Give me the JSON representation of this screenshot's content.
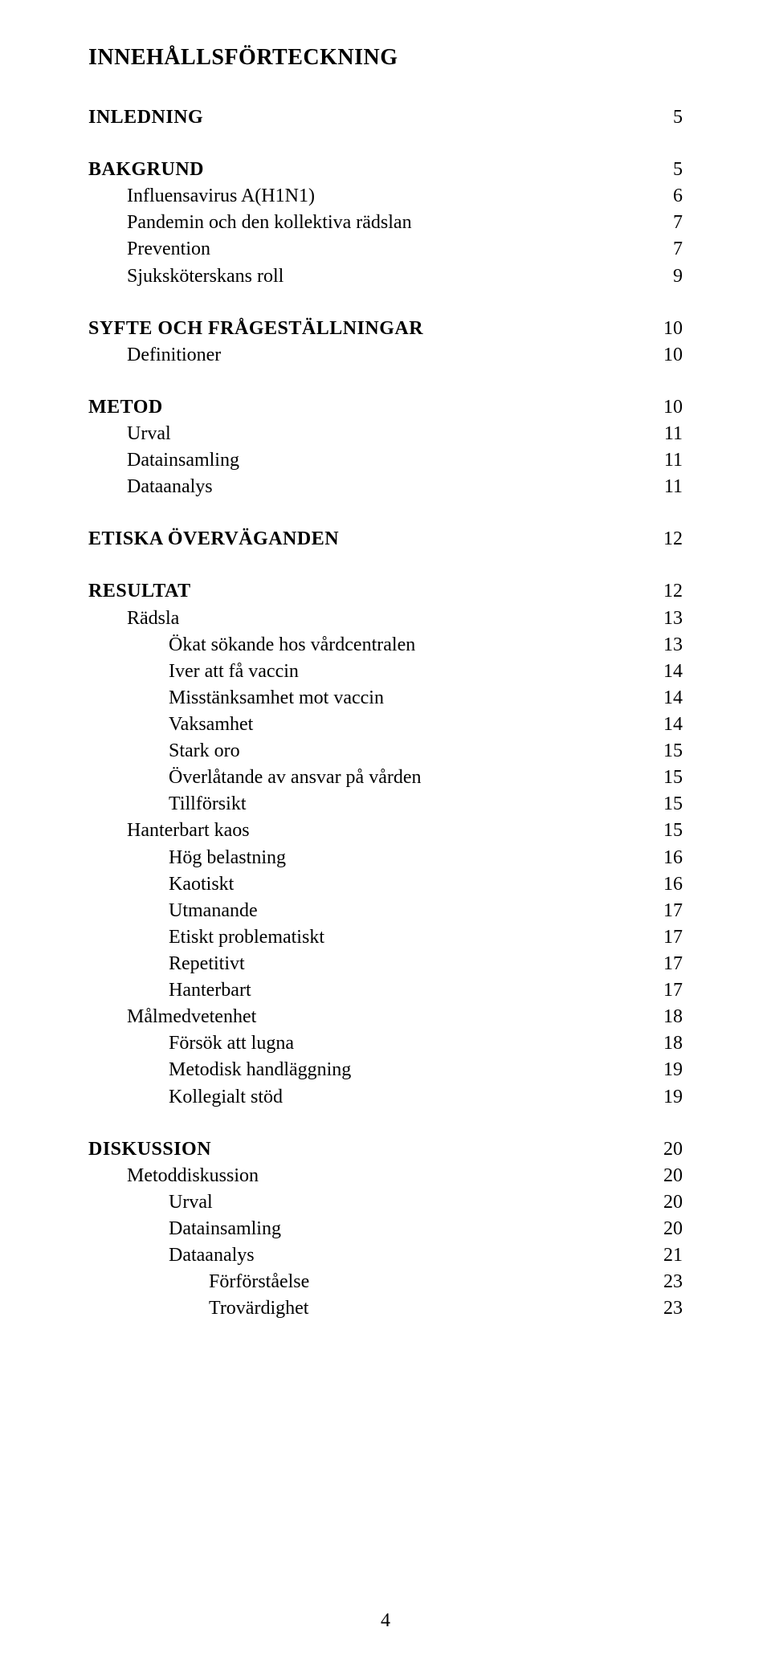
{
  "title": "INNEHÅLLSFÖRTECKNING",
  "page_footer": "4",
  "colors": {
    "text": "#000000",
    "background": "#ffffff"
  },
  "typography": {
    "family": "Times New Roman",
    "title_size_pt": 21,
    "body_size_pt": 18
  },
  "entries": [
    {
      "label": "INLEDNING",
      "page": "5",
      "level": 0,
      "bold": true,
      "gap_before": false
    },
    {
      "label": "BAKGRUND",
      "page": "5",
      "level": 0,
      "bold": true,
      "gap_before": true
    },
    {
      "label": "Influensavirus A(H1N1)",
      "page": "6",
      "level": 1,
      "bold": false
    },
    {
      "label": "Pandemin och den kollektiva rädslan",
      "page": "7",
      "level": 1,
      "bold": false
    },
    {
      "label": "Prevention",
      "page": "7",
      "level": 1,
      "bold": false
    },
    {
      "label": "Sjuksköterskans roll",
      "page": "9",
      "level": 1,
      "bold": false
    },
    {
      "label": "SYFTE OCH FRÅGESTÄLLNINGAR",
      "page": "10",
      "level": 0,
      "bold": true,
      "gap_before": true
    },
    {
      "label": "Definitioner",
      "page": "10",
      "level": 1,
      "bold": false
    },
    {
      "label": "METOD",
      "page": "10",
      "level": 0,
      "bold": true,
      "gap_before": true
    },
    {
      "label": "Urval",
      "page": "11",
      "level": 1,
      "bold": false
    },
    {
      "label": "Datainsamling",
      "page": "11",
      "level": 1,
      "bold": false
    },
    {
      "label": "Dataanalys",
      "page": "11",
      "level": 1,
      "bold": false
    },
    {
      "label": "ETISKA ÖVERVÄGANDEN",
      "page": "12",
      "level": 0,
      "bold": true,
      "gap_before": true
    },
    {
      "label": "RESULTAT",
      "page": "12",
      "level": 0,
      "bold": true,
      "gap_before": true
    },
    {
      "label": "Rädsla",
      "page": "13",
      "level": 1,
      "bold": false
    },
    {
      "label": "Ökat sökande hos vårdcentralen",
      "page": "13",
      "level": 2,
      "bold": false
    },
    {
      "label": "Iver att få vaccin",
      "page": "14",
      "level": 2,
      "bold": false
    },
    {
      "label": "Misstänksamhet mot vaccin",
      "page": "14",
      "level": 2,
      "bold": false
    },
    {
      "label": "Vaksamhet",
      "page": "14",
      "level": 2,
      "bold": false
    },
    {
      "label": "Stark oro",
      "page": "15",
      "level": 2,
      "bold": false
    },
    {
      "label": "Överlåtande av ansvar på vården",
      "page": "15",
      "level": 2,
      "bold": false
    },
    {
      "label": "Tillförsikt",
      "page": "15",
      "level": 2,
      "bold": false
    },
    {
      "label": "Hanterbart kaos",
      "page": "15",
      "level": 1,
      "bold": false
    },
    {
      "label": "Hög belastning",
      "page": "16",
      "level": 2,
      "bold": false
    },
    {
      "label": "Kaotiskt",
      "page": "16",
      "level": 2,
      "bold": false
    },
    {
      "label": "Utmanande",
      "page": "17",
      "level": 2,
      "bold": false
    },
    {
      "label": "Etiskt problematiskt",
      "page": "17",
      "level": 2,
      "bold": false
    },
    {
      "label": "Repetitivt",
      "page": "17",
      "level": 2,
      "bold": false
    },
    {
      "label": "Hanterbart",
      "page": "17",
      "level": 2,
      "bold": false
    },
    {
      "label": "Målmedvetenhet",
      "page": "18",
      "level": 1,
      "bold": false
    },
    {
      "label": "Försök att lugna",
      "page": "18",
      "level": 2,
      "bold": false
    },
    {
      "label": "Metodisk handläggning",
      "page": "19",
      "level": 2,
      "bold": false
    },
    {
      "label": "Kollegialt stöd",
      "page": "19",
      "level": 2,
      "bold": false
    },
    {
      "label": "DISKUSSION",
      "page": "20",
      "level": 0,
      "bold": true,
      "gap_before": true
    },
    {
      "label": "Metoddiskussion",
      "page": "20",
      "level": 1,
      "bold": false
    },
    {
      "label": "Urval",
      "page": "20",
      "level": 2,
      "bold": false
    },
    {
      "label": "Datainsamling",
      "page": "20",
      "level": 2,
      "bold": false
    },
    {
      "label": "Dataanalys",
      "page": "21",
      "level": 2,
      "bold": false
    },
    {
      "label": "Förförståelse",
      "page": "23",
      "level": 3,
      "bold": false
    },
    {
      "label": "Trovärdighet",
      "page": "23",
      "level": 3,
      "bold": false
    }
  ]
}
